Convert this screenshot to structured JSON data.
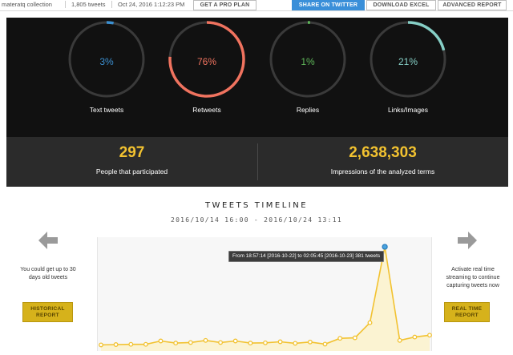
{
  "topbar": {
    "collection": "materatq collection",
    "tweets_count": "1,805 tweets",
    "date": "Oct 24, 2016 1:12:23 PM",
    "pro_plan_label": "GET A PRO PLAN",
    "share_label": "SHARE ON TWITTER",
    "excel_label": "DOWNLOAD EXCEL",
    "report_label": "ADVANCED REPORT"
  },
  "stats": {
    "gauges": [
      {
        "label": "Text tweets",
        "value": "3%",
        "fraction": 0.03,
        "color": "#3b8fd0"
      },
      {
        "label": "Retweets",
        "value": "76%",
        "fraction": 0.76,
        "color": "#f0735f"
      },
      {
        "label": "Replies",
        "value": "1%",
        "fraction": 0.01,
        "color": "#5fb85a"
      },
      {
        "label": "Links/Images",
        "value": "21%",
        "fraction": 0.21,
        "color": "#86cfc6"
      }
    ],
    "participants_value": "297",
    "participants_label": "People that participated",
    "impressions_value": "2,638,303",
    "impressions_label": "Impressions of the analyzed terms"
  },
  "timeline": {
    "title": "TWEETS TIMELINE",
    "range": "2016/10/14 16:00 - 2016/10/24 13:11",
    "left_text_1": "You could get up to 30",
    "left_text_2": "days old tweets",
    "historical_line1": "HISTORICAL",
    "historical_line2": "REPORT",
    "right_text_1": "Activate real time",
    "right_text_2": "streaming to continue",
    "right_text_3": "capturing tweets now",
    "realtime_line1": "REAL TIME",
    "realtime_line2": "REPORT",
    "tooltip": "From 18:57:14 [2016-10-22] to 02:05:45 [2016-10-23] 381 tweets",
    "line_color": "#f2c230",
    "peak_color": "#4aa3df"
  },
  "chart_data": {
    "type": "area",
    "title": "TWEETS TIMELINE",
    "highlighted_point": {
      "index": 19,
      "value": 381
    },
    "values": [
      5,
      6,
      7,
      7,
      20,
      12,
      14,
      22,
      14,
      20,
      12,
      13,
      17,
      11,
      16,
      8,
      30,
      32,
      90,
      381,
      22,
      35,
      42
    ]
  }
}
